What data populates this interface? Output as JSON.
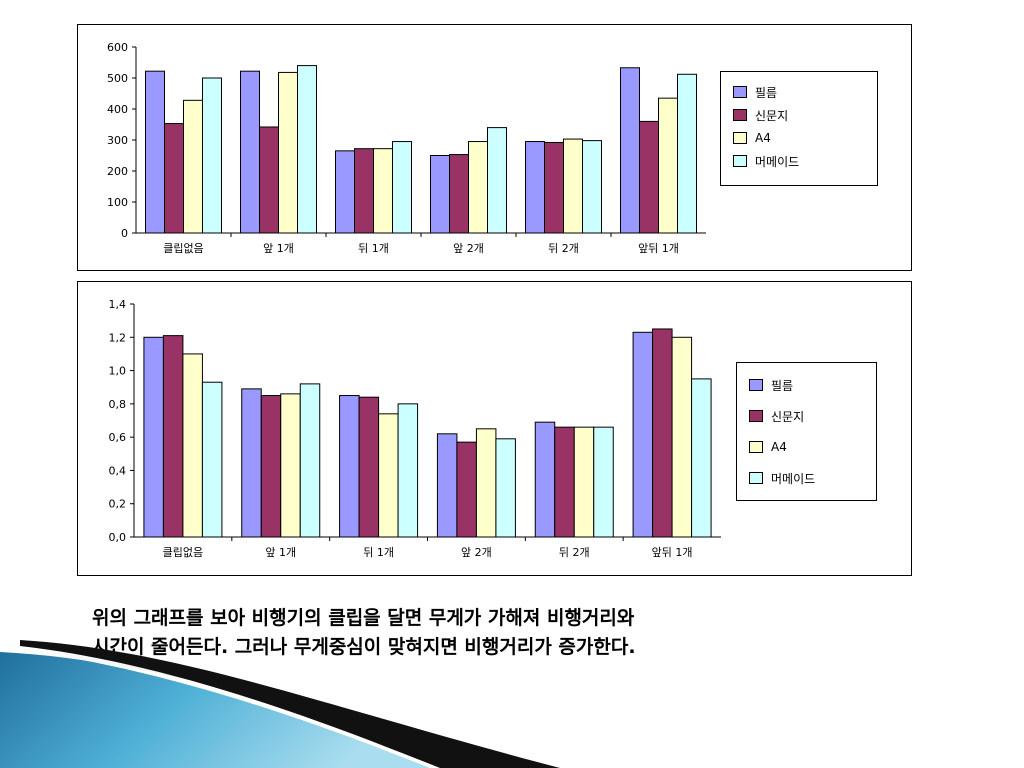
{
  "caption": {
    "line1": "위의 그래프를 보아 비행기의 클립을 달면 무게가 가해져 비행거리와",
    "line2": "시간이 줄어든다. 그러나 무게중심이 맞혀지면 비행거리가 증가한다."
  },
  "legend": [
    {
      "label": "필름",
      "color": "#9999ff"
    },
    {
      "label": "신문지",
      "color": "#993366"
    },
    {
      "label": "A4",
      "color": "#ffffcc"
    },
    {
      "label": "머메이드",
      "color": "#ccffff"
    }
  ],
  "chart_data": [
    {
      "type": "bar",
      "categories": [
        "클립없음",
        "앞 1개",
        "뒤 1개",
        "앞 2개",
        "뒤 2개",
        "앞뒤 1개"
      ],
      "yticks": [
        "0",
        "100",
        "200",
        "300",
        "400",
        "500",
        "600"
      ],
      "ylim": [
        0,
        600
      ],
      "grid": false,
      "legend_position": "right",
      "series": [
        {
          "name": "필름",
          "values": [
            522,
            522,
            265,
            250,
            295,
            533
          ]
        },
        {
          "name": "신문지",
          "values": [
            353,
            342,
            272,
            253,
            292,
            360
          ]
        },
        {
          "name": "A4",
          "values": [
            428,
            518,
            272,
            295,
            303,
            435
          ]
        },
        {
          "name": "머메이드",
          "values": [
            500,
            540,
            295,
            340,
            298,
            512
          ]
        }
      ]
    },
    {
      "type": "bar",
      "categories": [
        "클립없음",
        "앞 1개",
        "뒤 1개",
        "앞 2개",
        "뒤 2개",
        "앞뒤 1개"
      ],
      "yticks": [
        "0,0",
        "0,2",
        "0,4",
        "0,6",
        "0,8",
        "1,0",
        "1,2",
        "1,4"
      ],
      "ylim": [
        0,
        1.4
      ],
      "grid": false,
      "legend_position": "right",
      "series": [
        {
          "name": "필름",
          "values": [
            1.2,
            0.89,
            0.85,
            0.62,
            0.69,
            1.23
          ]
        },
        {
          "name": "신문지",
          "values": [
            1.21,
            0.85,
            0.84,
            0.57,
            0.66,
            1.25
          ]
        },
        {
          "name": "A4",
          "values": [
            1.1,
            0.86,
            0.74,
            0.65,
            0.66,
            1.2
          ]
        },
        {
          "name": "머메이드",
          "values": [
            0.93,
            0.92,
            0.8,
            0.59,
            0.66,
            0.95
          ]
        }
      ]
    }
  ]
}
